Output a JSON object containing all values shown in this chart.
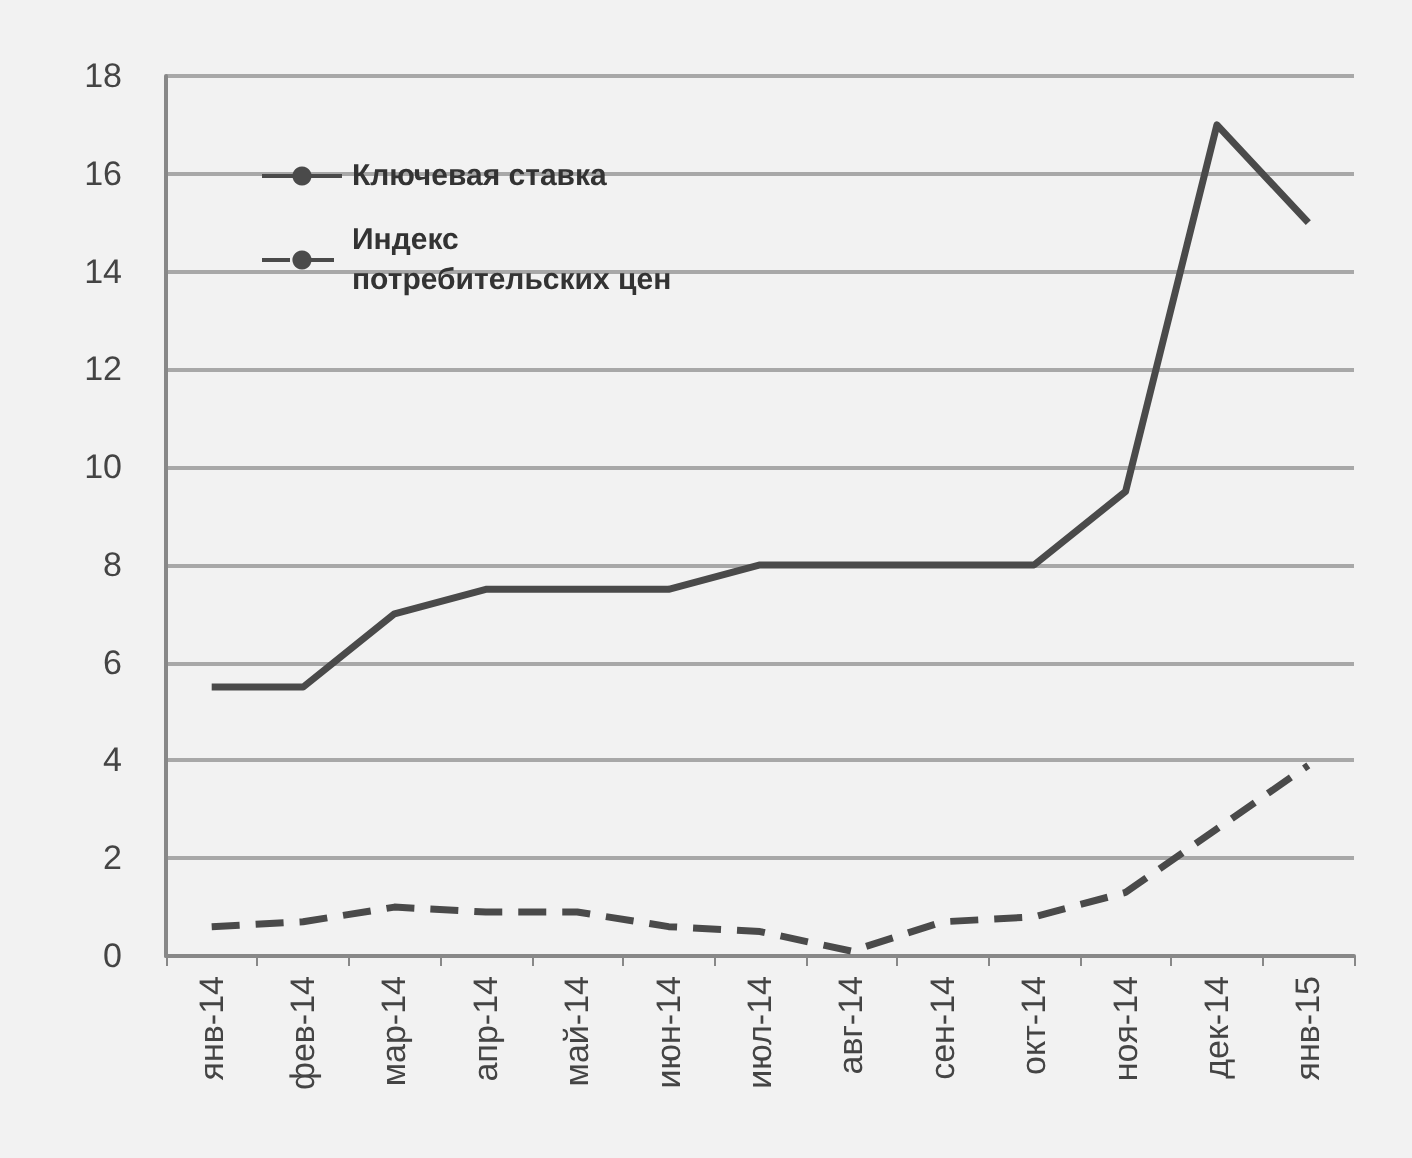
{
  "chart_data": {
    "type": "line",
    "categories": [
      "янв-14",
      "фев-14",
      "мар-14",
      "апр-14",
      "май-14",
      "июн-14",
      "июл-14",
      "авг-14",
      "сен-14",
      "окт-14",
      "ноя-14",
      "дек-14",
      "янв-15"
    ],
    "series": [
      {
        "name": "Ключевая ставка",
        "color": "#4a4a4a",
        "line_style": "solid",
        "values": [
          5.5,
          5.5,
          7,
          7.5,
          7.5,
          7.5,
          8,
          8,
          8,
          8,
          9.5,
          17,
          15
        ]
      },
      {
        "name": "Индекс потребительских цен",
        "color": "#4a4a4a",
        "line_style": "dashed",
        "values": [
          0.6,
          0.7,
          1.0,
          0.9,
          0.9,
          0.6,
          0.5,
          0.1,
          0.7,
          0.8,
          1.3,
          2.6,
          3.9
        ]
      }
    ],
    "ylim": [
      0,
      18
    ],
    "yticks": [
      0,
      2,
      4,
      6,
      8,
      10,
      12,
      14,
      16,
      18
    ],
    "grid": "y",
    "legend": "top left",
    "marker": "none"
  }
}
